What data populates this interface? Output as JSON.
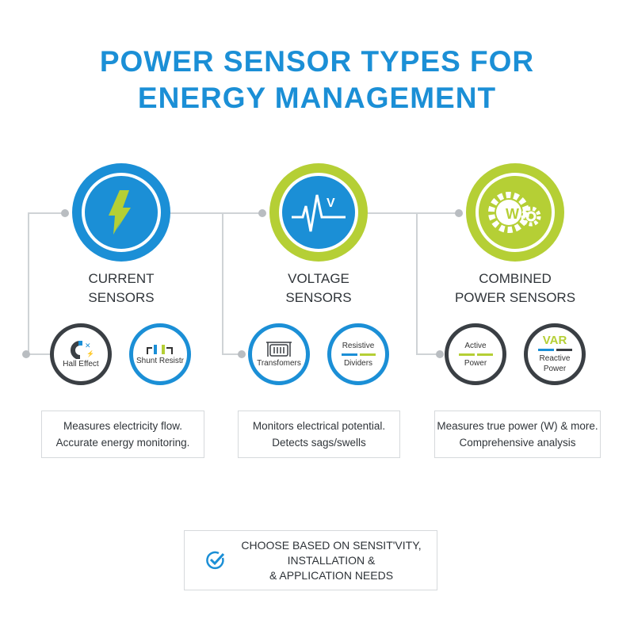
{
  "title": {
    "line1": "POWER SENSOR TYPES FOR",
    "line2": "ENERGY MANAGEMENT"
  },
  "colors": {
    "blue": "#1b8fd6",
    "green": "#b5cf35",
    "dark": "#3a3f44"
  },
  "categories": [
    {
      "line1": "CURRENT",
      "line2": "SENSORS",
      "icon": "lightning-bolt-icon",
      "desc1": "Measures electricity flow.",
      "desc2": "Accurate energy monitoring.",
      "subtypes": [
        {
          "label": "Hall Effect",
          "icon": "magnet-icon"
        },
        {
          "label": "Shunt Resistr",
          "icon": "shunt-resistor-icon"
        }
      ]
    },
    {
      "line1": "VOLTAGE",
      "line2": "SENSORS",
      "icon": "voltage-waveform-icon",
      "wave_label": "V",
      "desc1": "Monitors electrical potential.",
      "desc2": "Detects sags/swells",
      "subtypes": [
        {
          "label": "Transfomers",
          "icon": "transformer-icon"
        },
        {
          "label1": "Resistive",
          "label2": "Dividers"
        }
      ]
    },
    {
      "line1": "COMBINED",
      "line2": "POWER SENSORS",
      "icon": "gear-watt-icon",
      "gear_label": "W",
      "desc1": "Measures true power (W) & more.",
      "desc2": "Comprehensive analysis",
      "subtypes": [
        {
          "label1": "Active",
          "label2": "Power"
        },
        {
          "badge": "VAR",
          "label1": "Reactive",
          "label2": "Power"
        }
      ]
    }
  ],
  "footer": {
    "icon": "check-circle-icon",
    "line1": "CHOOSE BASED ON SENSIT'VITY,",
    "line2": "INSTALLATION &",
    "line3": "& APPLICATION NEEDS"
  }
}
